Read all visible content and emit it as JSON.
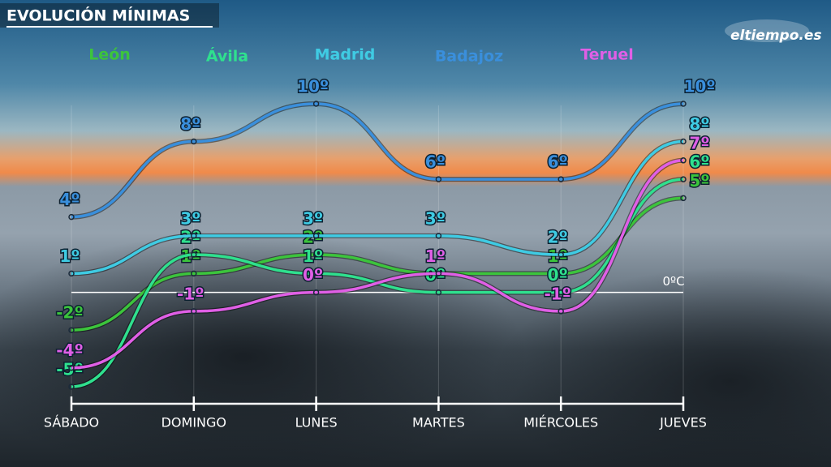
{
  "chart_data": {
    "type": "line",
    "title": "EVOLUCIÓN MÍNIMAS",
    "logo": "eltiempo.es",
    "categories": [
      "SÁBADO",
      "DOMINGO",
      "LUNES",
      "MARTES",
      "MIÉRCOLES",
      "JUEVES"
    ],
    "ylim": [
      -5,
      10
    ],
    "reference_line": {
      "value": 0,
      "label": "0ºC"
    },
    "series": [
      {
        "name": "León",
        "color": "#3cc43c",
        "values": [
          -2,
          1,
          2,
          1,
          1,
          5
        ],
        "value_labels": [
          "-2º",
          "1º",
          "2º",
          "1º",
          "1º",
          "5º"
        ]
      },
      {
        "name": "Ávila",
        "color": "#2fe08e",
        "values": [
          -5,
          2,
          1,
          0,
          0,
          6
        ],
        "value_labels": [
          "-5º",
          "2º",
          "1º",
          "0º",
          "0º",
          "6º"
        ]
      },
      {
        "name": "Madrid",
        "color": "#3fcbe3",
        "values": [
          1,
          3,
          3,
          3,
          2,
          8
        ],
        "value_labels": [
          "1º",
          "3º",
          "3º",
          "3º",
          "2º",
          "8º"
        ]
      },
      {
        "name": "Badajoz",
        "color": "#3a8fdc",
        "values": [
          4,
          8,
          10,
          6,
          6,
          10
        ],
        "value_labels": [
          "4º",
          "8º",
          "10º",
          "6º",
          "6º",
          "10º"
        ]
      },
      {
        "name": "Teruel",
        "color": "#e05fe6",
        "values": [
          -4,
          -1,
          0,
          1,
          -1,
          7
        ],
        "value_labels": [
          "-4º",
          "-1º",
          "0º",
          "1º",
          "-1º",
          "7º"
        ]
      }
    ]
  }
}
